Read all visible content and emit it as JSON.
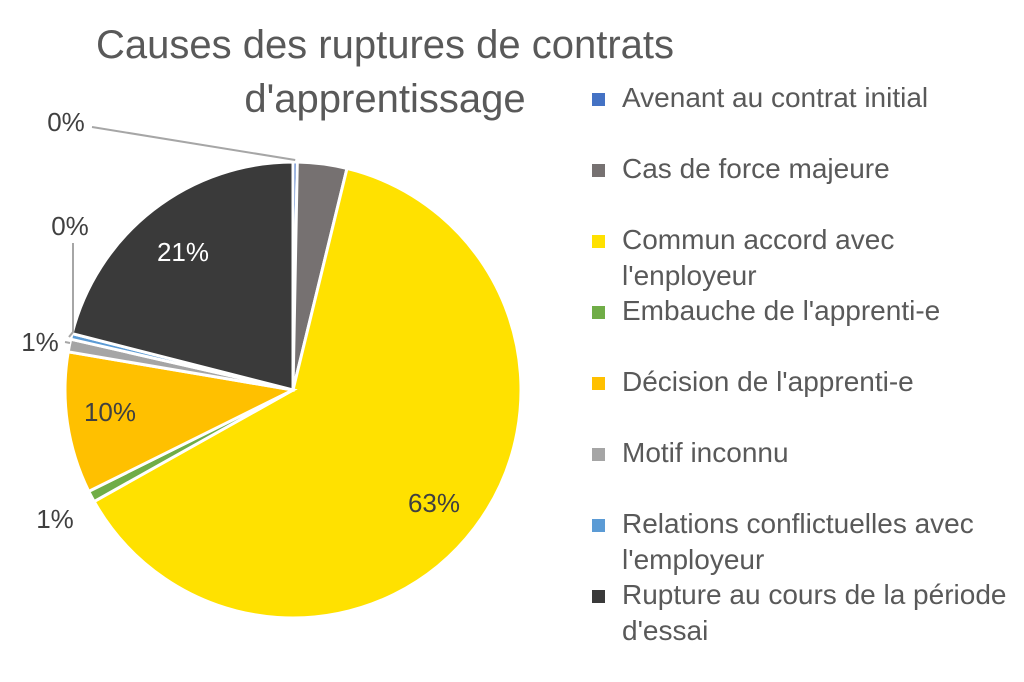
{
  "chart_data": {
    "type": "pie",
    "title_lines": [
      "Causes des ruptures de contrats",
      "d'apprentissage"
    ],
    "legend_position": "right",
    "start_angle_deg": 0,
    "slices": [
      {
        "name": "Avenant au contrat initial",
        "value": 0.3,
        "label": "",
        "color": "#4472C4"
      },
      {
        "name": "Cas de force majeure",
        "value": 3.5,
        "label": "",
        "color": "#767171"
      },
      {
        "name": "Commun accord avec l'enployeur",
        "value": 63,
        "label": "63%",
        "color": "#FFE100"
      },
      {
        "name": "Embauche de l'apprenti-e",
        "value": 0.8,
        "label": "1%",
        "color": "#70AD47"
      },
      {
        "name": "Décision de l'apprenti-e",
        "value": 10,
        "label": "10%",
        "color": "#FFC000"
      },
      {
        "name": "Motif inconnu",
        "value": 0.9,
        "label": "1%",
        "color": "#A5A5A5"
      },
      {
        "name": "Relations conflictuelles avec l'employeur",
        "value": 0.4,
        "label": "0%",
        "color": "#5B9BD5"
      },
      {
        "name": "Rupture au cours de la période d'essai",
        "value": 21,
        "label": "21%",
        "color": "#3A3A3A"
      }
    ],
    "extra_labels": [
      {
        "text": "0%",
        "slice": 0
      }
    ]
  }
}
